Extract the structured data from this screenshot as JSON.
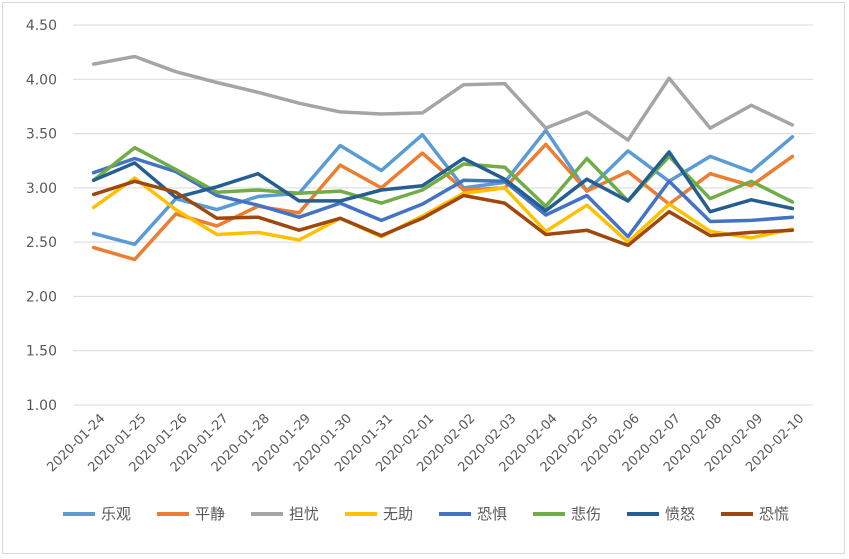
{
  "chart_data": {
    "type": "line",
    "title": "",
    "xlabel": "",
    "ylabel": "",
    "ylim": [
      1.0,
      4.5
    ],
    "yticks": [
      "1.00",
      "1.50",
      "2.00",
      "2.50",
      "3.00",
      "3.50",
      "4.00",
      "4.50"
    ],
    "grid": true,
    "legend_position": "bottom",
    "categories": [
      "2020-01-24",
      "2020-01-25",
      "2020-01-26",
      "2020-01-27",
      "2020-01-28",
      "2020-01-29",
      "2020-01-30",
      "2020-01-31",
      "2020-02-01",
      "2020-02-02",
      "2020-02-03",
      "2020-02-04",
      "2020-02-05",
      "2020-02-06",
      "2020-02-07",
      "2020-02-08",
      "2020-02-09",
      "2020-02-10"
    ],
    "series": [
      {
        "name": "乐观",
        "color": "#5B9BD5",
        "values": [
          2.58,
          2.48,
          2.9,
          2.8,
          2.92,
          2.95,
          3.39,
          3.16,
          3.49,
          3.0,
          3.05,
          3.53,
          2.97,
          3.34,
          3.06,
          3.29,
          3.15,
          3.47
        ]
      },
      {
        "name": "平静",
        "color": "#ED7D31",
        "values": [
          2.45,
          2.34,
          2.76,
          2.65,
          2.83,
          2.77,
          3.21,
          3.0,
          3.32,
          2.98,
          3.0,
          3.4,
          2.97,
          3.15,
          2.85,
          3.13,
          3.02,
          3.29
        ]
      },
      {
        "name": "担忧",
        "color": "#A5A5A5",
        "values": [
          4.14,
          4.21,
          4.07,
          3.97,
          3.88,
          3.78,
          3.7,
          3.68,
          3.69,
          3.95,
          3.96,
          3.55,
          3.7,
          3.44,
          4.01,
          3.55,
          3.76,
          3.58
        ]
      },
      {
        "name": "无助",
        "color": "#FFC000",
        "values": [
          2.82,
          3.09,
          2.8,
          2.57,
          2.59,
          2.52,
          2.72,
          2.55,
          2.74,
          2.95,
          3.0,
          2.6,
          2.84,
          2.5,
          2.85,
          2.6,
          2.54,
          2.62
        ]
      },
      {
        "name": "恐惧",
        "color": "#4472C4",
        "values": [
          3.14,
          3.27,
          3.15,
          2.93,
          2.84,
          2.73,
          2.86,
          2.7,
          2.85,
          3.07,
          3.06,
          2.75,
          2.93,
          2.55,
          3.06,
          2.69,
          2.7,
          2.73
        ]
      },
      {
        "name": "悲伤",
        "color": "#70AD47",
        "values": [
          3.07,
          3.37,
          3.17,
          2.96,
          2.98,
          2.95,
          2.97,
          2.86,
          2.98,
          3.22,
          3.19,
          2.83,
          3.27,
          2.88,
          3.29,
          2.9,
          3.06,
          2.87
        ]
      },
      {
        "name": "愤怒",
        "color": "#255E91",
        "values": [
          3.07,
          3.23,
          2.91,
          3.01,
          3.13,
          2.88,
          2.88,
          2.98,
          3.02,
          3.27,
          3.08,
          2.79,
          3.08,
          2.88,
          3.33,
          2.78,
          2.89,
          2.81
        ]
      },
      {
        "name": "恐慌",
        "color": "#9E480E",
        "values": [
          2.94,
          3.06,
          2.96,
          2.72,
          2.73,
          2.61,
          2.72,
          2.56,
          2.72,
          2.93,
          2.86,
          2.57,
          2.61,
          2.47,
          2.78,
          2.56,
          2.59,
          2.61
        ]
      }
    ]
  }
}
